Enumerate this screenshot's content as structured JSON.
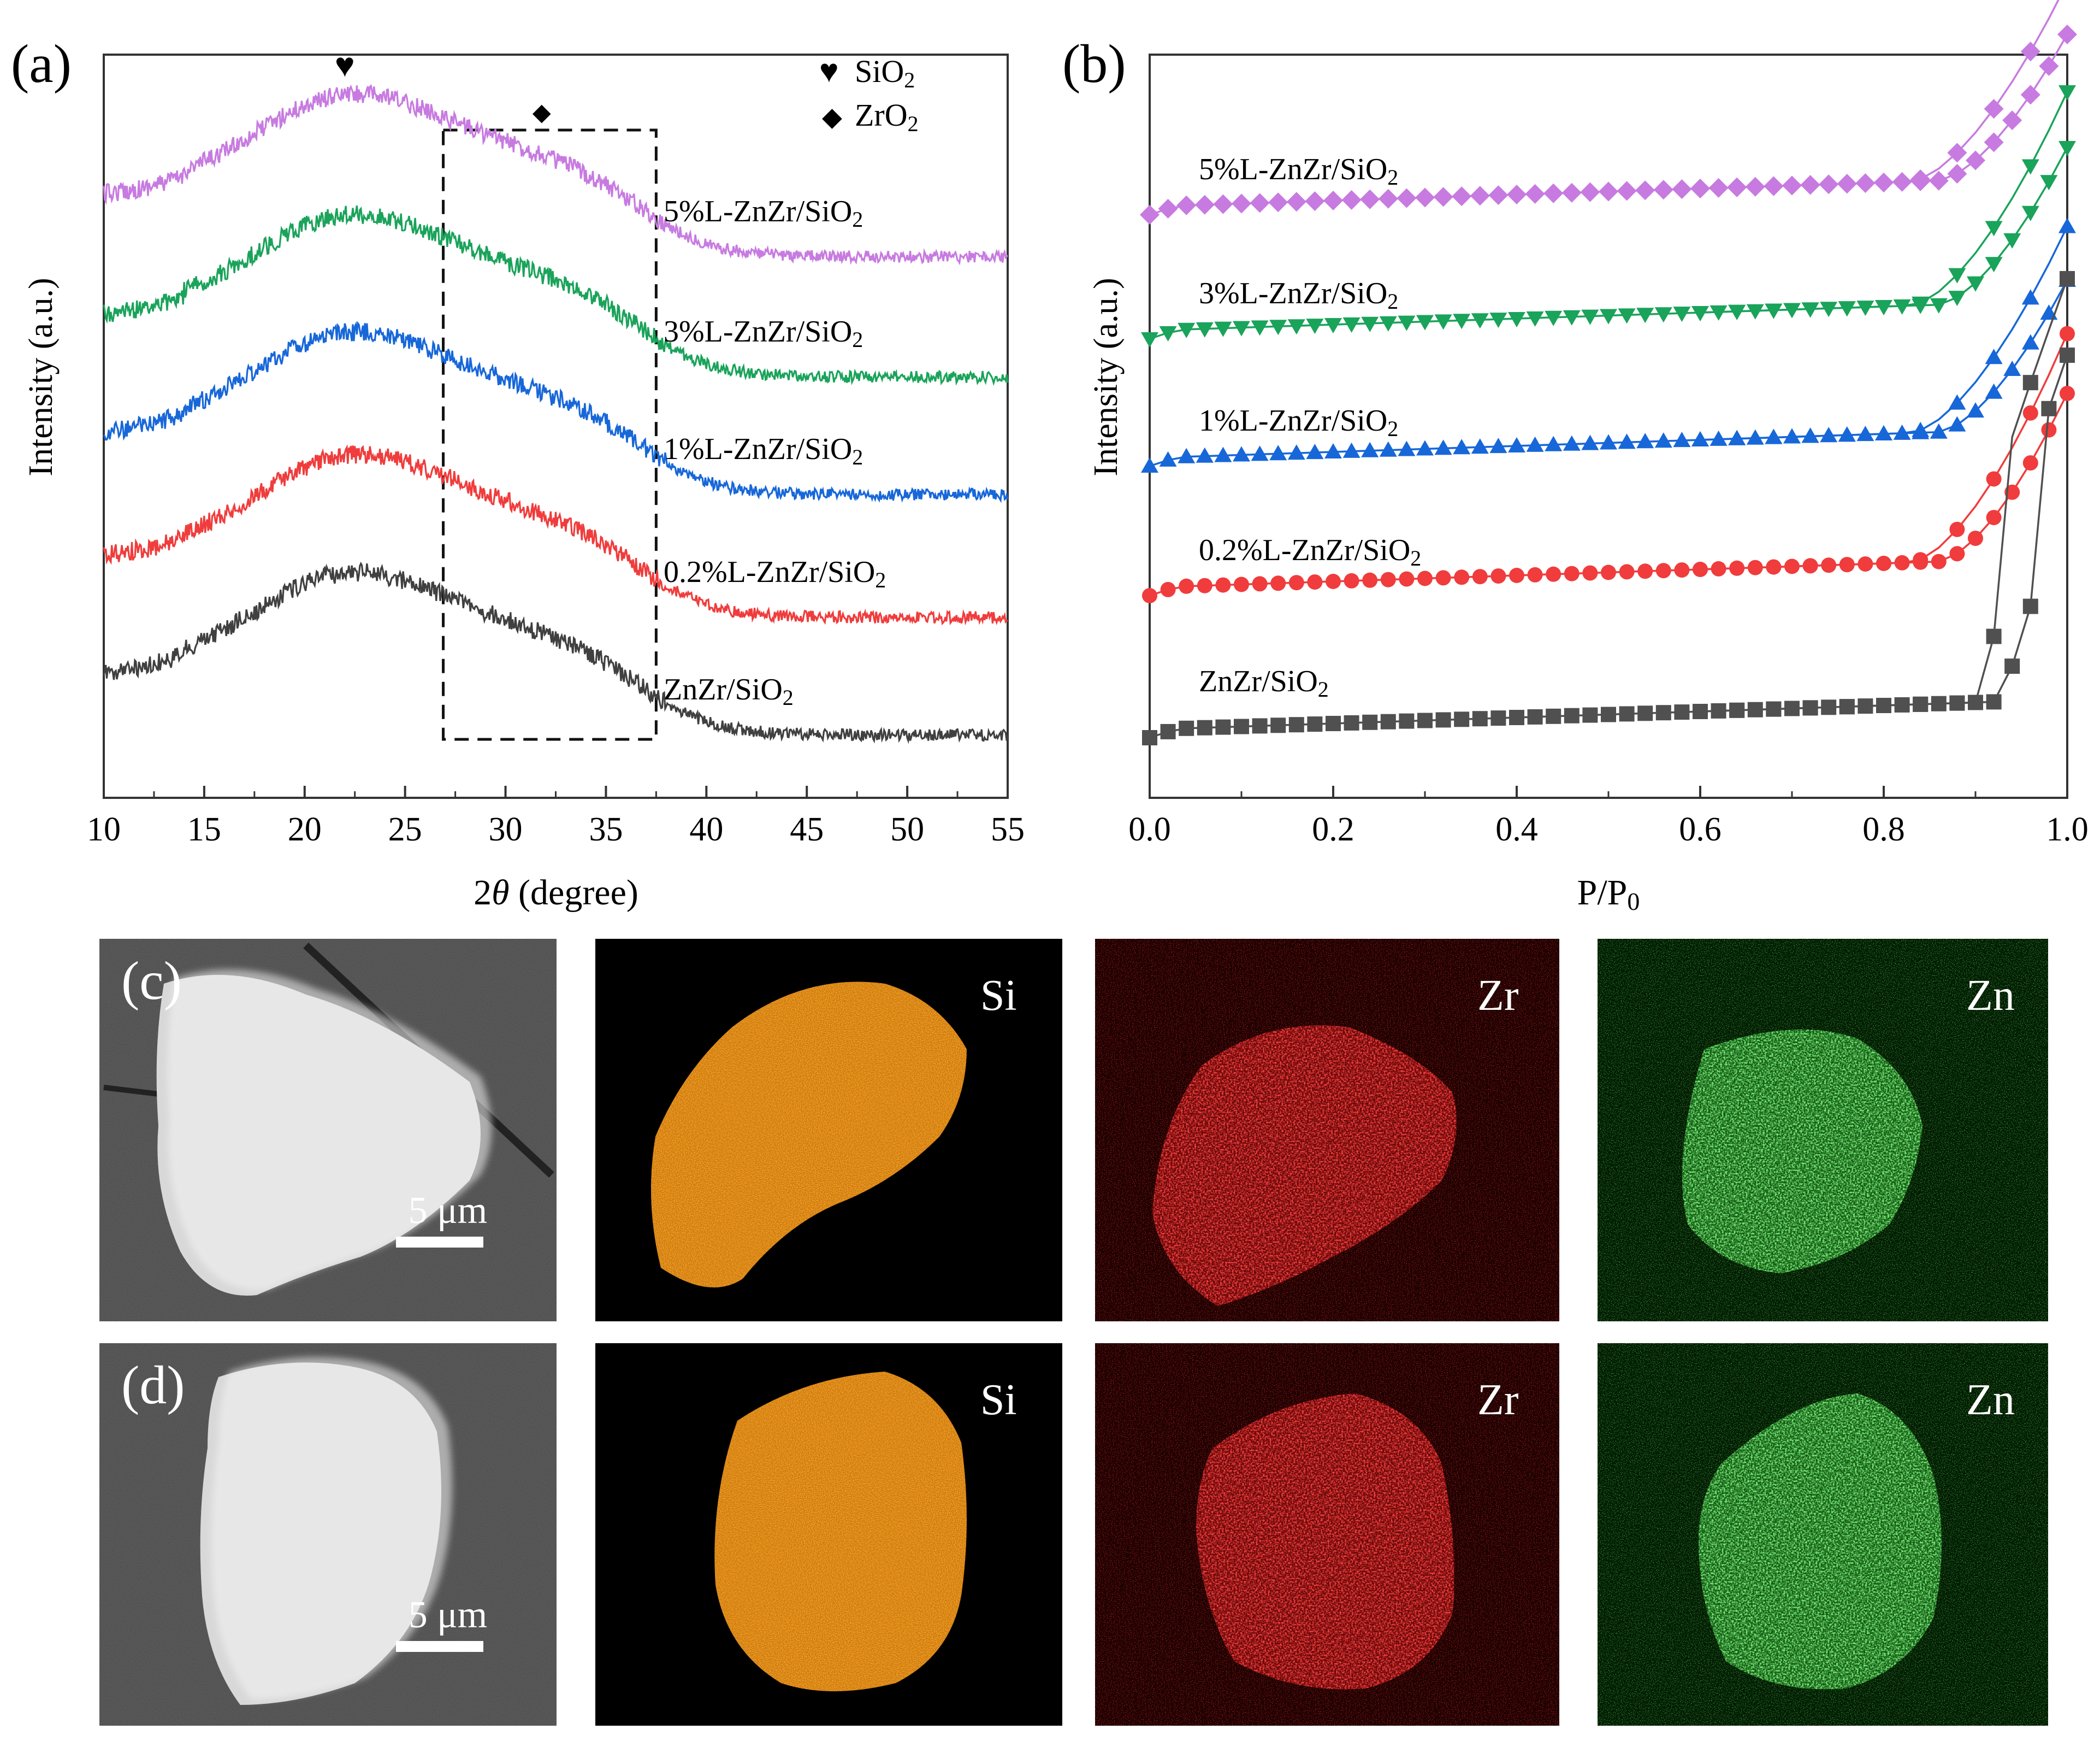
{
  "chart_data": [
    {
      "panel": "(a)",
      "type": "line",
      "title": "",
      "xlabel_prefix": "2",
      "xlabel_theta": "θ",
      "xlabel_suffix": " (degree)",
      "ylabel": "Intensity (a.u.)",
      "xlim": [
        10,
        55
      ],
      "xticks": [
        "10",
        "15",
        "20",
        "25",
        "30",
        "35",
        "40",
        "45",
        "50",
        "55"
      ],
      "legend": [
        {
          "marker": "♥",
          "label": "SiO",
          "sub": "2"
        },
        {
          "marker": "◆",
          "label": "ZrO",
          "sub": "2"
        }
      ],
      "peak_markers": [
        {
          "symbol": "♥",
          "x": 22
        },
        {
          "symbol": "◆",
          "x": 31.8
        }
      ],
      "highlight_range": [
        26.9,
        37.5
      ],
      "series": [
        {
          "name": "5%L-ZnZr/SiO",
          "sub": "2",
          "color": "#c77be0",
          "offset": 4,
          "peak_x": 21.8
        },
        {
          "name": "3%L-ZnZr/SiO",
          "sub": "2",
          "color": "#1aa35a",
          "offset": 3,
          "peak_x": 21.8
        },
        {
          "name": "1%L-ZnZr/SiO",
          "sub": "2",
          "color": "#1767d9",
          "offset": 2,
          "peak_x": 21.8
        },
        {
          "name": "0.2%L-ZnZr/SiO",
          "sub": "2",
          "color": "#f03c3c",
          "offset": 1,
          "peak_x": 22.0
        },
        {
          "name": "ZnZr/SiO",
          "sub": "2",
          "color": "#404040",
          "offset": 0,
          "peak_x": 21.8
        }
      ]
    },
    {
      "panel": "(b)",
      "type": "line",
      "title": "",
      "xlabel": "P/P",
      "xlabel_sub": "0",
      "ylabel": "Intensity (a.u.)",
      "xlim": [
        0.0,
        1.0
      ],
      "xticks": [
        "0.0",
        "0.2",
        "0.4",
        "0.6",
        "0.8",
        "1.0"
      ],
      "series": [
        {
          "name": "5%L-ZnZr/SiO",
          "sub": "2",
          "color": "#c77be0",
          "marker": "diamond",
          "offset": 4
        },
        {
          "name": "3%L-ZnZr/SiO",
          "sub": "2",
          "color": "#1aa35a",
          "marker": "triangle-down",
          "offset": 3
        },
        {
          "name": "1%L-ZnZr/SiO",
          "sub": "2",
          "color": "#1767d9",
          "marker": "triangle-up",
          "offset": 2
        },
        {
          "name": "0.2%L-ZnZr/SiO",
          "sub": "2",
          "color": "#f03c3c",
          "marker": "circle",
          "offset": 1
        },
        {
          "name": "ZnZr/SiO",
          "sub": "2",
          "color": "#505050",
          "marker": "square",
          "offset": 0
        }
      ]
    }
  ],
  "panels": {
    "c": {
      "label": "(c)",
      "scale_bar": "5 μm",
      "maps": [
        "Si",
        "Zr",
        "Zn"
      ]
    },
    "d": {
      "label": "(d)",
      "scale_bar": "5 μm",
      "maps": [
        "Si",
        "Zr",
        "Zn"
      ]
    }
  },
  "colors": {
    "sem": "#5a5a5a",
    "si_map": "#e8820c",
    "zr_map": "#e01414",
    "zn_map": "#2ec42e"
  }
}
